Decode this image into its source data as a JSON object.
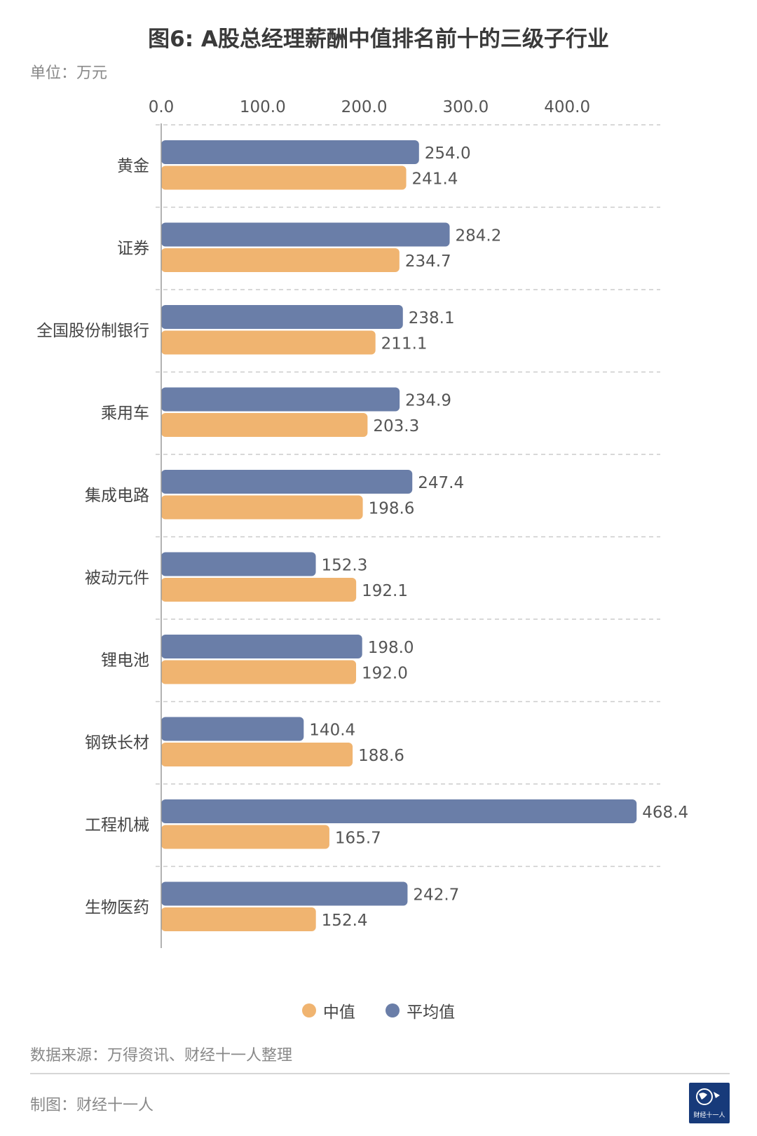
{
  "title": "图6: A股总经理薪酬中值排名前十的三级子行业",
  "unit": "单位：万元",
  "source": "数据来源：万得资讯、财经十一人整理",
  "maker": "制图：财经十一人",
  "logo_text": "财经十一人",
  "colors": {
    "mean": "#6a7ea8",
    "median": "#f0b470",
    "grid": "#cccccc",
    "axis": "#999999"
  },
  "legend": [
    {
      "label": "中值",
      "color": "#f0b470"
    },
    {
      "label": "平均值",
      "color": "#6a7ea8"
    }
  ],
  "chart_data": {
    "type": "bar",
    "orientation": "horizontal",
    "title": "图6: A股总经理薪酬中值排名前十的三级子行业",
    "xlabel": "",
    "ylabel": "",
    "xlim": [
      0,
      490
    ],
    "tick_values": [
      0,
      100,
      200,
      300,
      400
    ],
    "tick_labels": [
      "0.0",
      "100.0",
      "200.0",
      "300.0",
      "400.0"
    ],
    "categories": [
      "黄金",
      "证券",
      "全国股份制银行",
      "乘用车",
      "集成电路",
      "被动元件",
      "锂电池",
      "钢铁长材",
      "工程机械",
      "生物医药"
    ],
    "series": [
      {
        "name": "平均值",
        "color": "#6a7ea8",
        "values": [
          254.0,
          284.2,
          238.1,
          234.9,
          247.4,
          152.3,
          198.0,
          140.4,
          468.4,
          242.7
        ],
        "labels": [
          "254.0",
          "284.2",
          "238.1",
          "234.9",
          "247.4",
          "152.3",
          "198.0",
          "140.4",
          "468.4",
          "242.7"
        ]
      },
      {
        "name": "中值",
        "color": "#f0b470",
        "values": [
          241.4,
          234.7,
          211.1,
          203.3,
          198.6,
          192.1,
          192.0,
          188.6,
          165.7,
          152.4
        ],
        "labels": [
          "241.4",
          "234.7",
          "211.1",
          "203.3",
          "198.6",
          "192.1",
          "192.0",
          "188.6",
          "165.7",
          "152.4"
        ]
      }
    ],
    "legend_position": "bottom",
    "grid": true
  }
}
